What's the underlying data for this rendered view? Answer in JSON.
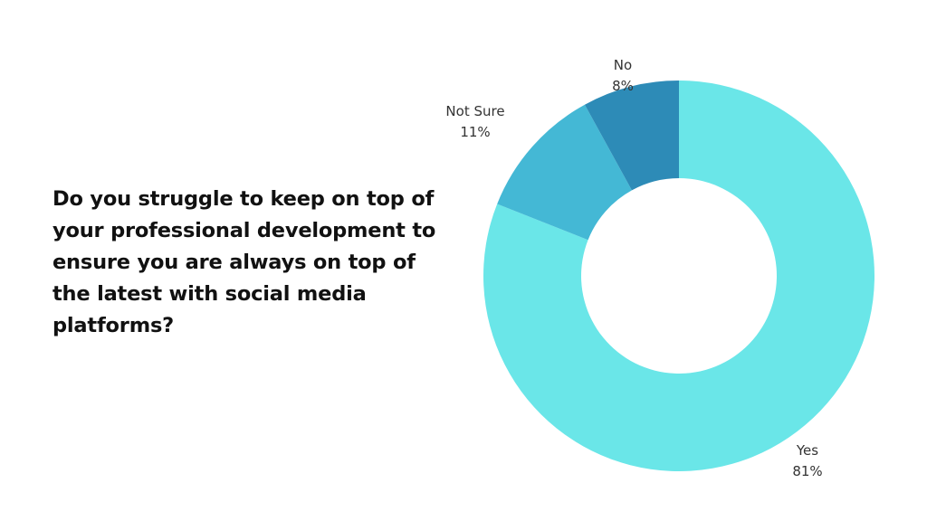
{
  "question": "Do you struggle to keep on top of your professional development to ensure you are always on top of the latest with social media platforms?",
  "chart_data": {
    "type": "pie",
    "donut": true,
    "title": "",
    "categories": [
      "Yes",
      "Not Sure",
      "No"
    ],
    "values": [
      81,
      11,
      8
    ],
    "value_labels": [
      "81%",
      "11%",
      "8%"
    ],
    "colors": [
      "#6ae6e8",
      "#44b8d5",
      "#2d8bb7"
    ],
    "start": "top",
    "direction": "clockwise",
    "legend": "none"
  }
}
